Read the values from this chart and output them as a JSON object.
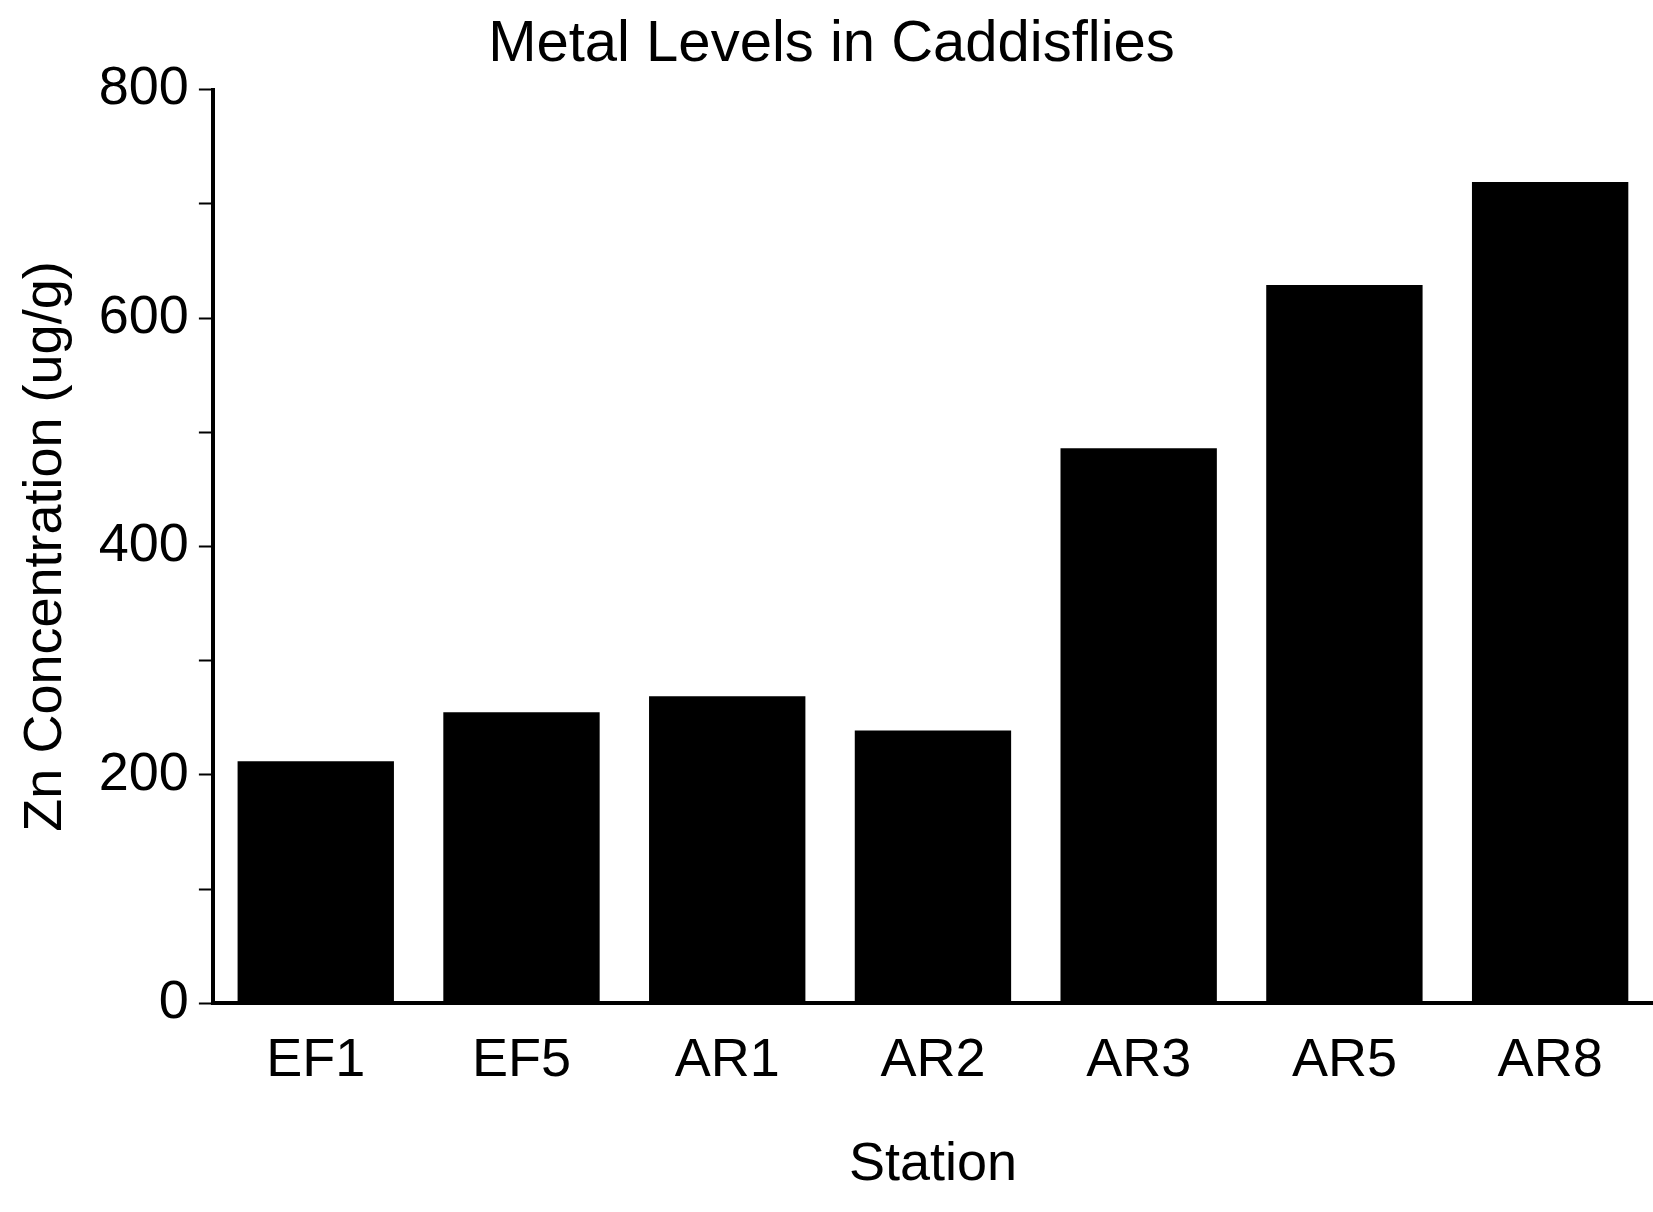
{
  "chart_data": {
    "type": "bar",
    "title": "Metal Levels in Caddisflies",
    "xlabel": "Station",
    "ylabel": "Zn Concentration (ug/g)",
    "categories": [
      "EF1",
      "EF5",
      "AR1",
      "AR2",
      "AR3",
      "AR5",
      "AR8"
    ],
    "values": [
      212,
      255,
      269,
      239,
      486,
      629,
      719
    ],
    "color": "#000000",
    "ylim": [
      0,
      800
    ],
    "yticks": [
      0,
      {
        "value": 100,
        "label": null
      },
      200,
      {
        "value": 300,
        "label": null
      },
      400,
      {
        "value": 500,
        "label": null
      },
      600,
      {
        "value": 700,
        "label": null
      },
      800
    ],
    "grid": false,
    "legend": false
  }
}
